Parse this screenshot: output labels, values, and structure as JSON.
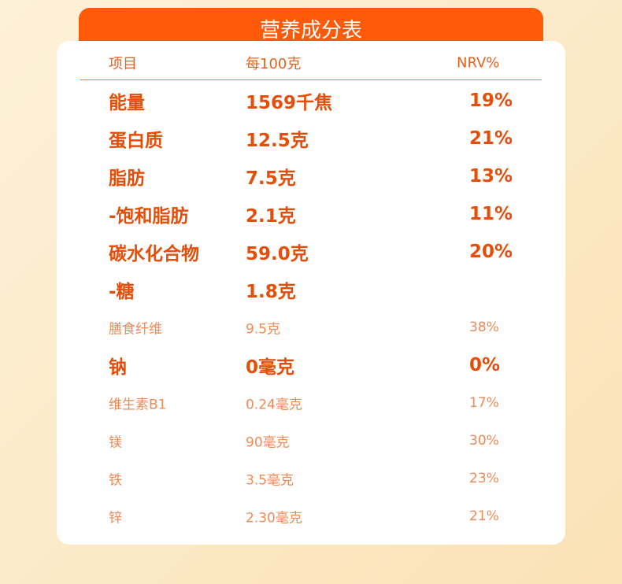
{
  "header": {
    "title": "营养成分表"
  },
  "table": {
    "columns": [
      "项目",
      "每100克",
      "NRV%"
    ],
    "rows": [
      {
        "name": "能量",
        "amount": "1569千焦",
        "nrv": "19%",
        "bold": true
      },
      {
        "name": "蛋白质",
        "amount": "12.5克",
        "nrv": "21%",
        "bold": true
      },
      {
        "name": "脂肪",
        "amount": "7.5克",
        "nrv": "13%",
        "bold": true
      },
      {
        "name": "-饱和脂肪",
        "amount": "2.1克",
        "nrv": "11%",
        "bold": true
      },
      {
        "name": "碳水化合物",
        "amount": "59.0克",
        "nrv": "20%",
        "bold": true
      },
      {
        "name": "-糖",
        "amount": "1.8克",
        "bold": true
      },
      {
        "name": "膳食纤维",
        "amount": "9.5克",
        "nrv": "38%",
        "bold": false
      },
      {
        "name": "钠",
        "amount": "0毫克",
        "nrv": "0%",
        "bold": true
      },
      {
        "name": "维生素B1",
        "amount": "0.24毫克",
        "nrv": "17%",
        "bold": false
      },
      {
        "name": "镁",
        "amount": "90毫克",
        "nrv": "30%",
        "bold": false
      },
      {
        "name": "铁",
        "amount": "3.5毫克",
        "nrv": "23%",
        "bold": false
      },
      {
        "name": "锌",
        "amount": "2.30毫克",
        "nrv": "21%",
        "bold": false
      }
    ]
  }
}
